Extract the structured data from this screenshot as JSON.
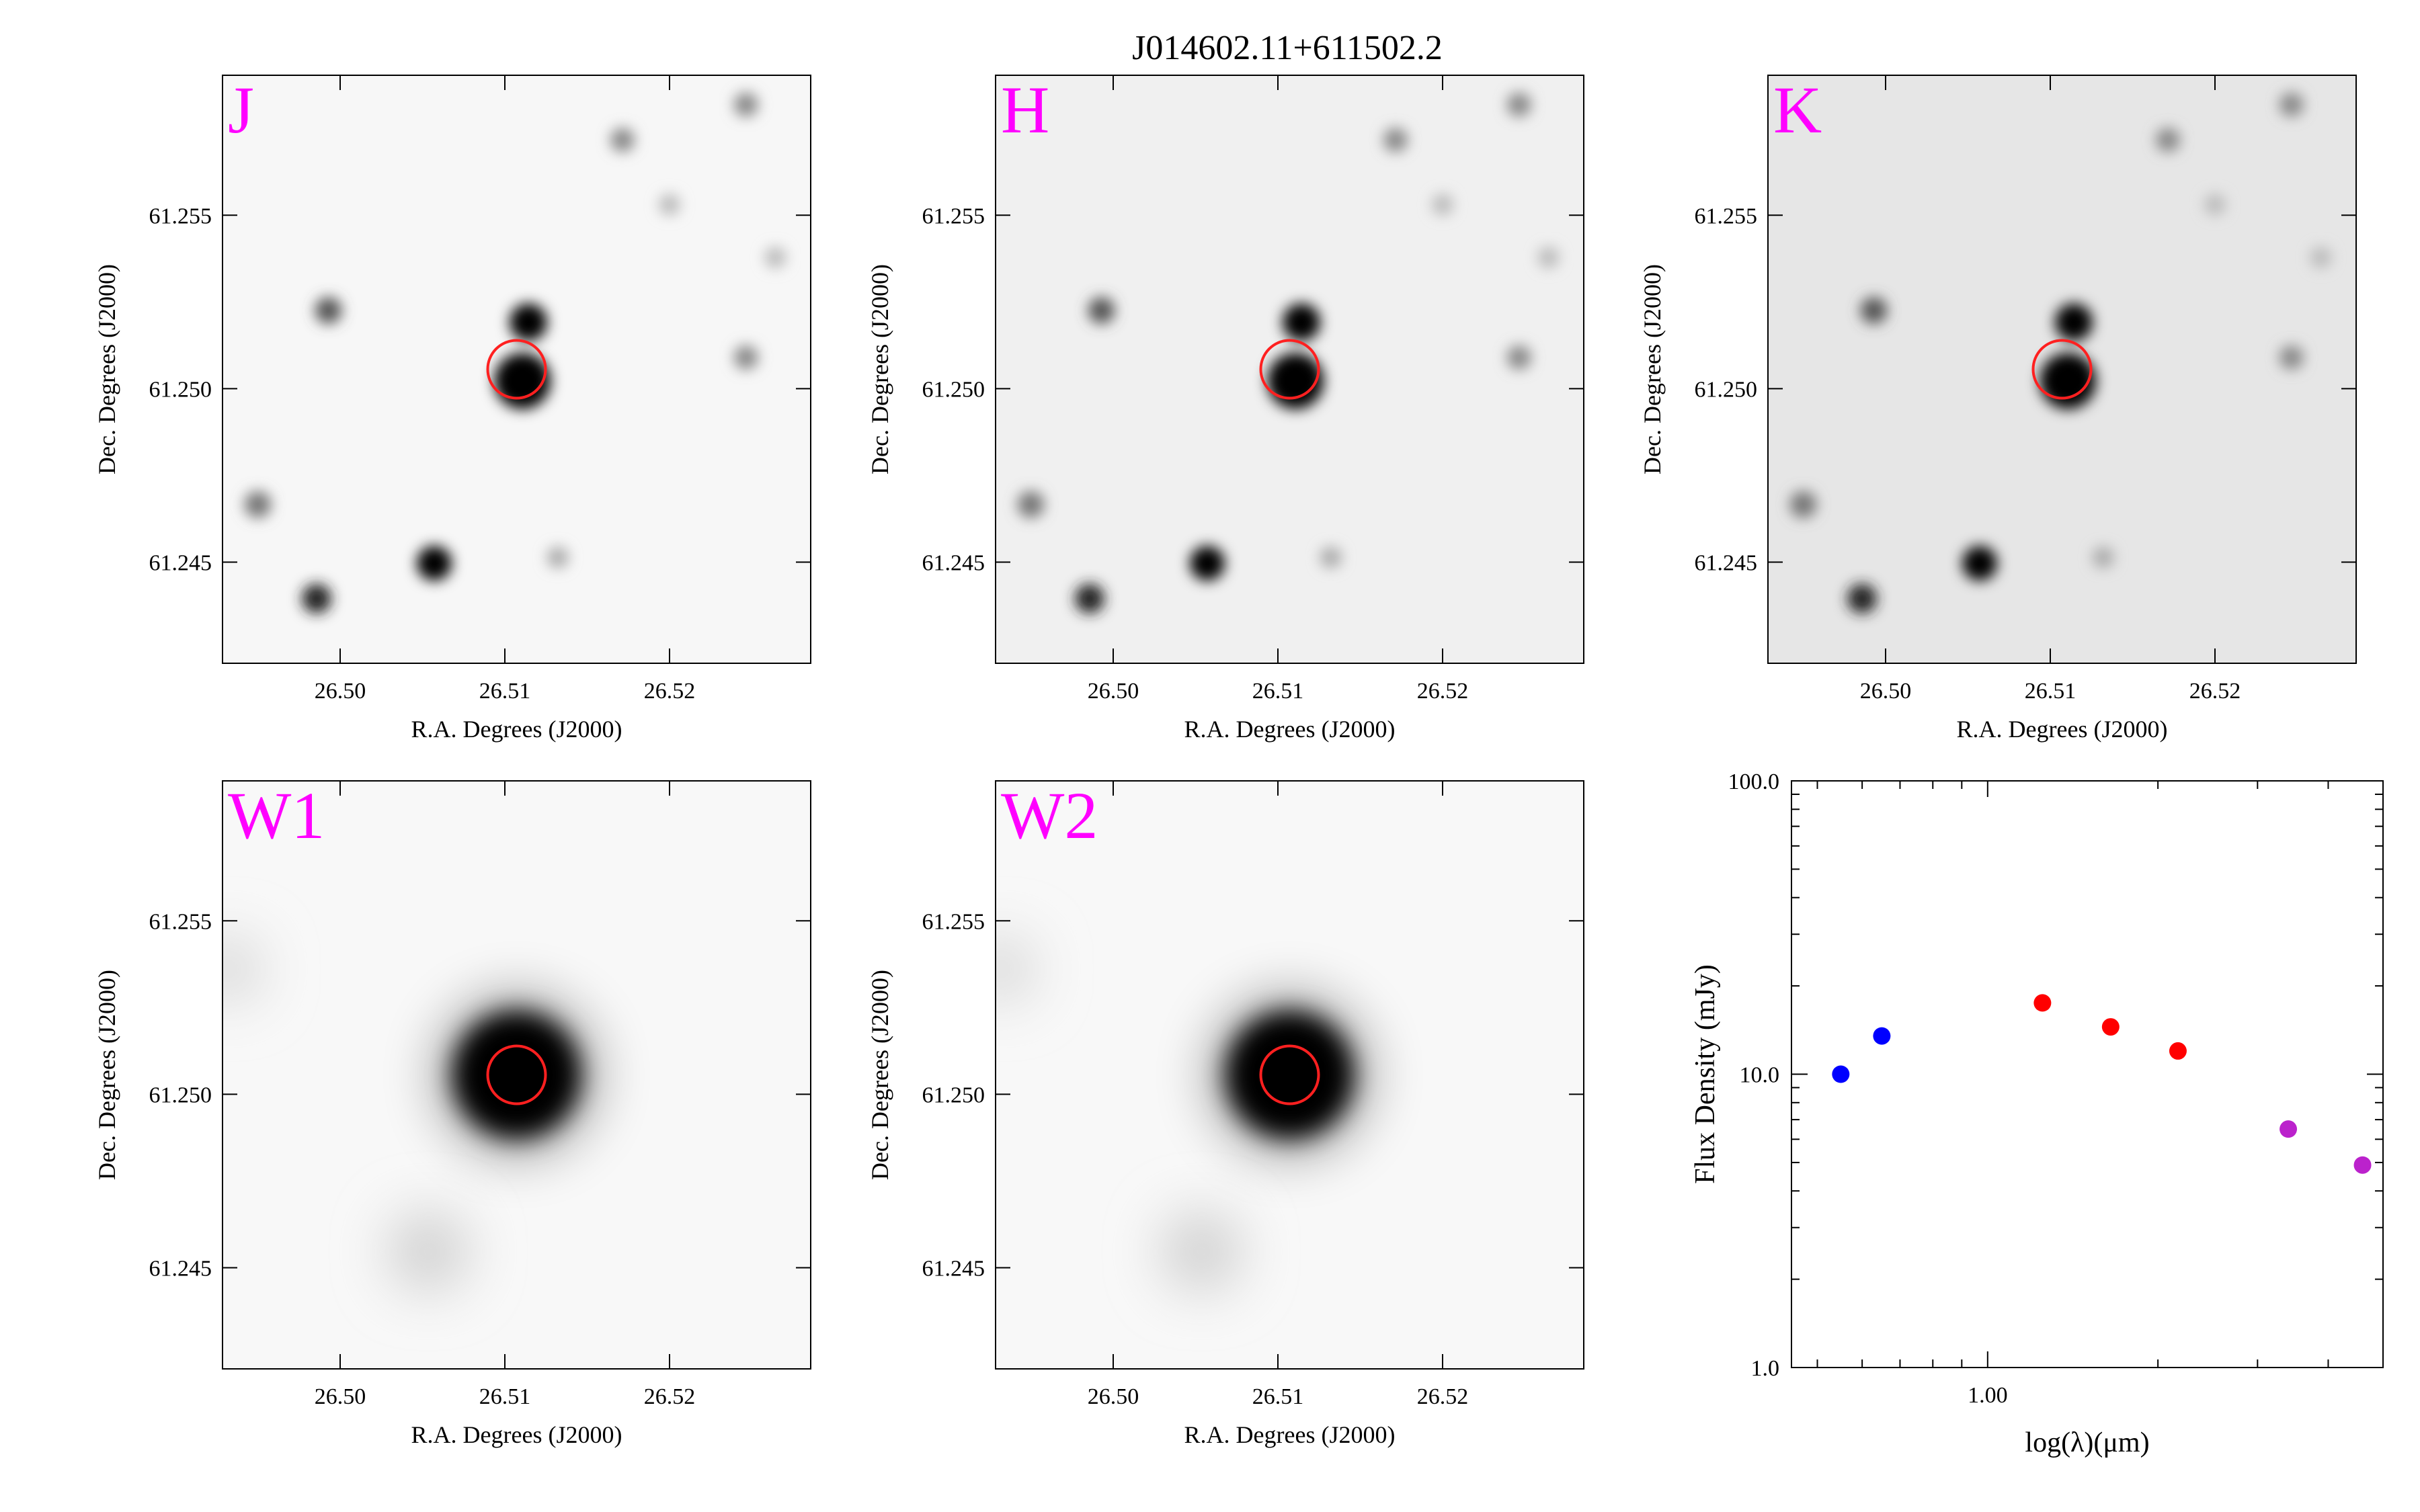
{
  "title": "J014602.11+611502.2",
  "accent_colors": {
    "band_label": "#ff00ff",
    "aperture": "#ff2020"
  },
  "image_panels": [
    {
      "band": "J",
      "xlabel": "R.A. Degrees (J2000)",
      "ylabel": "Dec. Degrees (J2000)",
      "xticks": [
        "26.50",
        "26.51",
        "26.52"
      ],
      "yticks": [
        "61.255",
        "61.250",
        "61.245"
      ]
    },
    {
      "band": "H",
      "xlabel": "R.A. Degrees (J2000)",
      "ylabel": "Dec. Degrees (J2000)",
      "xticks": [
        "26.50",
        "26.51",
        "26.52"
      ],
      "yticks": [
        "61.255",
        "61.250",
        "61.245"
      ]
    },
    {
      "band": "K",
      "xlabel": "R.A. Degrees (J2000)",
      "ylabel": "Dec. Degrees (J2000)",
      "xticks": [
        "26.50",
        "26.51",
        "26.52"
      ],
      "yticks": [
        "61.255",
        "61.250",
        "61.245"
      ]
    },
    {
      "band": "W1",
      "xlabel": "R.A. Degrees (J2000)",
      "ylabel": "Dec. Degrees (J2000)",
      "xticks": [
        "26.50",
        "26.51",
        "26.52"
      ],
      "yticks": [
        "61.255",
        "61.250",
        "61.245"
      ]
    },
    {
      "band": "W2",
      "xlabel": "R.A. Degrees (J2000)",
      "ylabel": "Dec. Degrees (J2000)",
      "xticks": [
        "26.50",
        "26.51",
        "26.52"
      ],
      "yticks": [
        "61.255",
        "61.250",
        "61.245"
      ]
    }
  ],
  "chart_data": {
    "type": "scatter",
    "xlabel": "log(λ)(μm)",
    "ylabel": "Flux Density (mJy)",
    "y_scale": "log",
    "x_scale": "log",
    "xlim": [
      0.45,
      5.0
    ],
    "ylim": [
      1.0,
      100.0
    ],
    "yticks": [
      "1.0",
      "10.0",
      "100.0"
    ],
    "xticks": [
      "1.00"
    ],
    "grid": false,
    "series": [
      {
        "color": "#0000ff",
        "x": [
          0.55,
          0.65
        ],
        "y": [
          10.0,
          13.5
        ]
      },
      {
        "color": "#ff0000",
        "x": [
          1.25,
          1.65,
          2.17
        ],
        "y": [
          17.5,
          14.5,
          12.0
        ]
      },
      {
        "color": "#bb22cc",
        "x": [
          3.4,
          4.6
        ],
        "y": [
          6.5,
          4.9
        ]
      }
    ]
  }
}
